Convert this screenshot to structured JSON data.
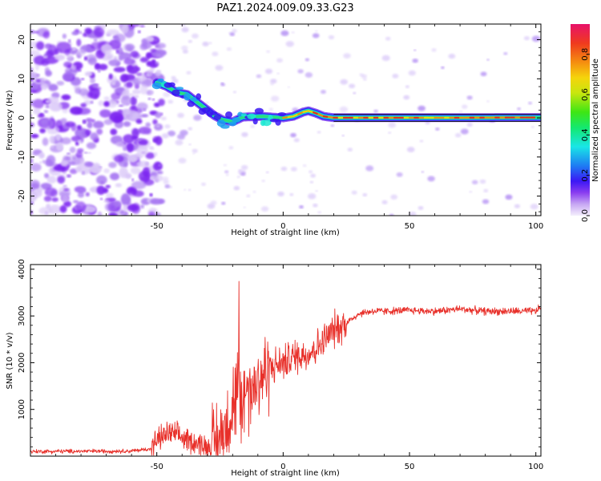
{
  "figure_title": "PAZ1.2024.009.09.33.G23",
  "chart_data": [
    {
      "type": "heatmap",
      "xlabel": "Height of straight line (km)",
      "ylabel": "Frequency (Hz)",
      "xlim": [
        -100,
        102
      ],
      "ylim": [
        -25,
        24
      ],
      "xticks": [
        -50,
        0,
        50,
        100
      ],
      "yticks": [
        -20,
        -10,
        0,
        10,
        20
      ],
      "colorbar": {
        "label": "Normalized spectral amplitude",
        "range": [
          0.0,
          0.95
        ],
        "ticks": [
          0.0,
          0.2,
          0.4,
          0.6,
          0.8
        ],
        "colormap": "rainbow with transparent-to-purple low end"
      },
      "ridge": {
        "description_points_x": [
          -50,
          -46,
          -42,
          -38,
          -34,
          -30,
          -27,
          -24,
          -20,
          -16,
          -12,
          -8,
          -4,
          0,
          4,
          8,
          10,
          13,
          16,
          20,
          30,
          50,
          70,
          90,
          102
        ],
        "description_points_y": [
          9,
          8,
          6.5,
          6,
          4,
          2,
          0.5,
          -0.5,
          -1,
          0.2,
          0.3,
          0.4,
          0.2,
          0,
          0.4,
          1.5,
          1.8,
          1.2,
          0.4,
          0.05,
          0.05,
          0.05,
          0.05,
          0.1,
          0.1
        ]
      },
      "bright_noise_region_x": [
        -100,
        -50
      ]
    },
    {
      "type": "line",
      "xlabel": "Height of straight line (km)",
      "ylabel": "SNR (10 * v/v)",
      "xlim": [
        -100,
        102
      ],
      "ylim": [
        0,
        4100
      ],
      "xticks": [
        -50,
        0,
        50,
        100
      ],
      "yticks": [
        1000,
        2000,
        3000,
        4000
      ],
      "series": [
        {
          "color": "#e8302a",
          "envelope_x": [
            -100,
            -60,
            -52,
            -50,
            -45,
            -40,
            -35,
            -30,
            -25,
            -20,
            -18,
            -15,
            -12,
            -8,
            -5,
            0,
            5,
            10,
            15,
            20,
            25,
            30,
            35,
            40,
            50,
            60,
            70,
            80,
            90,
            100,
            102
          ],
          "envelope_y": [
            100,
            110,
            160,
            350,
            500,
            400,
            300,
            200,
            350,
            1100,
            1400,
            1300,
            1500,
            1750,
            1900,
            2000,
            2150,
            2200,
            2400,
            2700,
            2850,
            3050,
            3100,
            3100,
            3120,
            3100,
            3150,
            3100,
            3100,
            3100,
            3200
          ]
        }
      ]
    }
  ],
  "colors": {
    "line": "#e8302a",
    "axis": "#000000"
  }
}
